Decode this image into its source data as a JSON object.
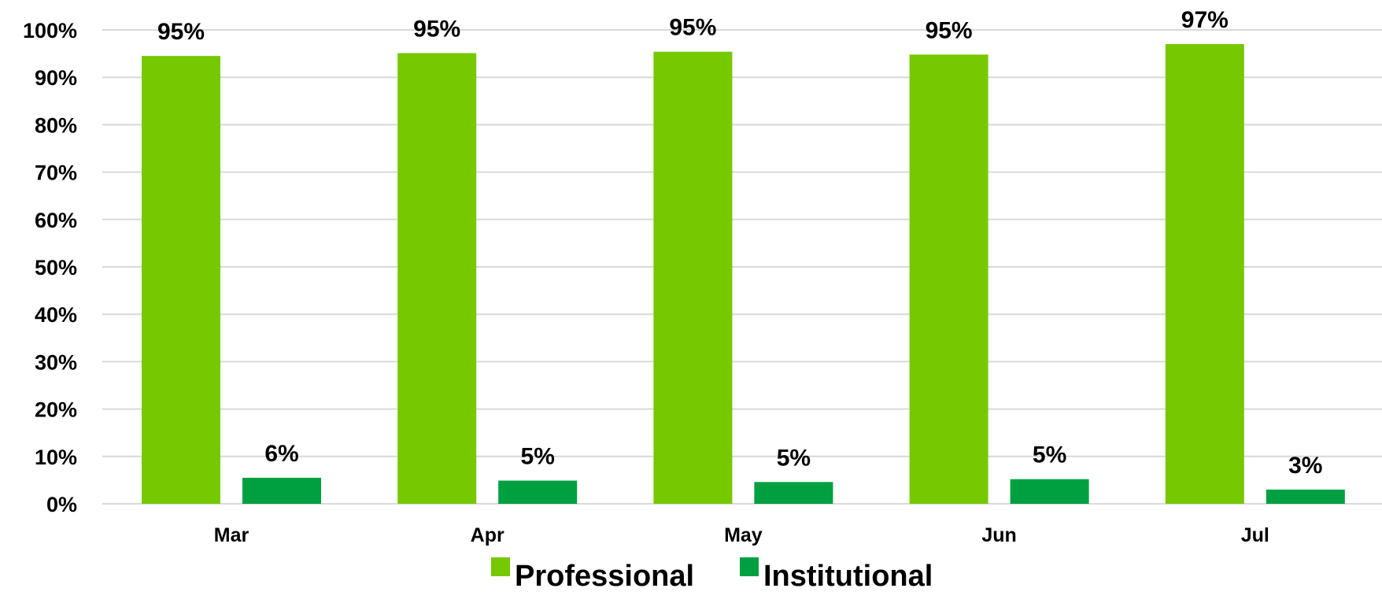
{
  "chart_data": {
    "type": "bar",
    "categories": [
      "Mar",
      "Apr",
      "May",
      "Jun",
      "Jul"
    ],
    "series": [
      {
        "name": "Professional",
        "color": "#76c800",
        "values": [
          94.5,
          95.1,
          95.4,
          94.8,
          97.0
        ],
        "labels": [
          "95%",
          "95%",
          "95%",
          "95%",
          "97%"
        ]
      },
      {
        "name": "Institutional",
        "color": "#00a040",
        "values": [
          5.5,
          4.9,
          4.6,
          5.2,
          3.0
        ],
        "labels": [
          "6%",
          "5%",
          "5%",
          "5%",
          "3%"
        ]
      }
    ],
    "yticks": [
      "0%",
      "10%",
      "20%",
      "30%",
      "40%",
      "50%",
      "60%",
      "70%",
      "80%",
      "90%",
      "100%"
    ],
    "ylim": [
      0,
      100
    ],
    "title": "",
    "xlabel": "",
    "ylabel": "",
    "grid": true,
    "legend_position": "bottom-center"
  }
}
